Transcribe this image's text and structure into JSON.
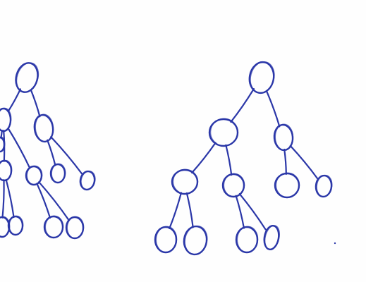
{
  "diagram": {
    "kind": "hand-drawn binary trees",
    "ink_color": "#2b37a8",
    "background_color": "#fefefe",
    "trees": [
      {
        "name": "left-tree",
        "nodes": [
          {
            "id": "L1"
          },
          {
            "id": "L2"
          },
          {
            "id": "L3"
          },
          {
            "id": "L4"
          },
          {
            "id": "L5"
          },
          {
            "id": "L6"
          },
          {
            "id": "L7"
          },
          {
            "id": "L8"
          },
          {
            "id": "L9"
          },
          {
            "id": "L10"
          },
          {
            "id": "L11"
          },
          {
            "id": "L12"
          }
        ],
        "edges": [
          [
            "L1",
            "L2"
          ],
          [
            "L1",
            "L3"
          ],
          [
            "L2",
            "L4"
          ],
          [
            "L2",
            "L5"
          ],
          [
            "L3",
            "L6"
          ],
          [
            "L3",
            "L7"
          ],
          [
            "L4",
            "L8"
          ],
          [
            "L4",
            "L9"
          ],
          [
            "L5",
            "L10"
          ],
          [
            "L5",
            "L11"
          ],
          [
            "L2",
            "L12"
          ]
        ]
      },
      {
        "name": "right-tree",
        "nodes": [
          {
            "id": "R1"
          },
          {
            "id": "R2"
          },
          {
            "id": "R3"
          },
          {
            "id": "R4"
          },
          {
            "id": "R5"
          },
          {
            "id": "R6"
          },
          {
            "id": "R7"
          },
          {
            "id": "R8"
          },
          {
            "id": "R9"
          },
          {
            "id": "R10"
          },
          {
            "id": "R11"
          }
        ],
        "edges": [
          [
            "R1",
            "R2"
          ],
          [
            "R1",
            "R3"
          ],
          [
            "R2",
            "R4"
          ],
          [
            "R2",
            "R5"
          ],
          [
            "R3",
            "R6"
          ],
          [
            "R3",
            "R7"
          ],
          [
            "R4",
            "R8"
          ],
          [
            "R4",
            "R9"
          ],
          [
            "R5",
            "R10"
          ],
          [
            "R5",
            "R11"
          ]
        ]
      }
    ]
  }
}
